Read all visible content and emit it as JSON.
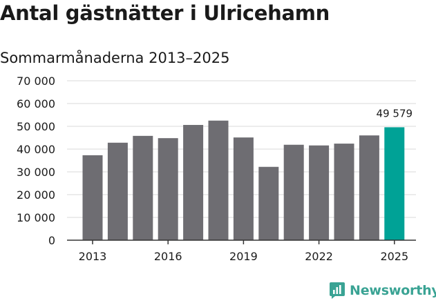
{
  "title": "Antal gästnätter i Ulricehamn",
  "subtitle": "Sommarmånaderna 2013–2025",
  "brand": {
    "name": "Newsworthy"
  },
  "colors": {
    "bar": "#6e6d72",
    "highlight": "#00a296",
    "grid": "#d9d9d9",
    "axis": "#333333",
    "text": "#1a1a1a",
    "brand": "#3aa394"
  },
  "chart_data": {
    "type": "bar",
    "title": "Antal gästnätter i Ulricehamn",
    "subtitle": "Sommarmånaderna 2013–2025",
    "categories": [
      2013,
      2014,
      2015,
      2016,
      2017,
      2018,
      2019,
      2020,
      2021,
      2022,
      2023,
      2024,
      2025
    ],
    "values": [
      37300,
      42800,
      45800,
      44800,
      50600,
      52500,
      45100,
      32200,
      41900,
      41600,
      42400,
      46000,
      49579
    ],
    "highlight_index": 12,
    "value_label": "49 579",
    "x_tick_labels": [
      "2013",
      "2016",
      "2019",
      "2022",
      "2025"
    ],
    "y_tick_labels": [
      "0",
      "10 000",
      "20 000",
      "30 000",
      "40 000",
      "50 000",
      "60 000",
      "70 000"
    ],
    "y_ticks": [
      0,
      10000,
      20000,
      30000,
      40000,
      50000,
      60000,
      70000
    ],
    "ylim": [
      0,
      70000
    ],
    "xlabel": "",
    "ylabel": "",
    "grid": true,
    "legend": "none"
  }
}
